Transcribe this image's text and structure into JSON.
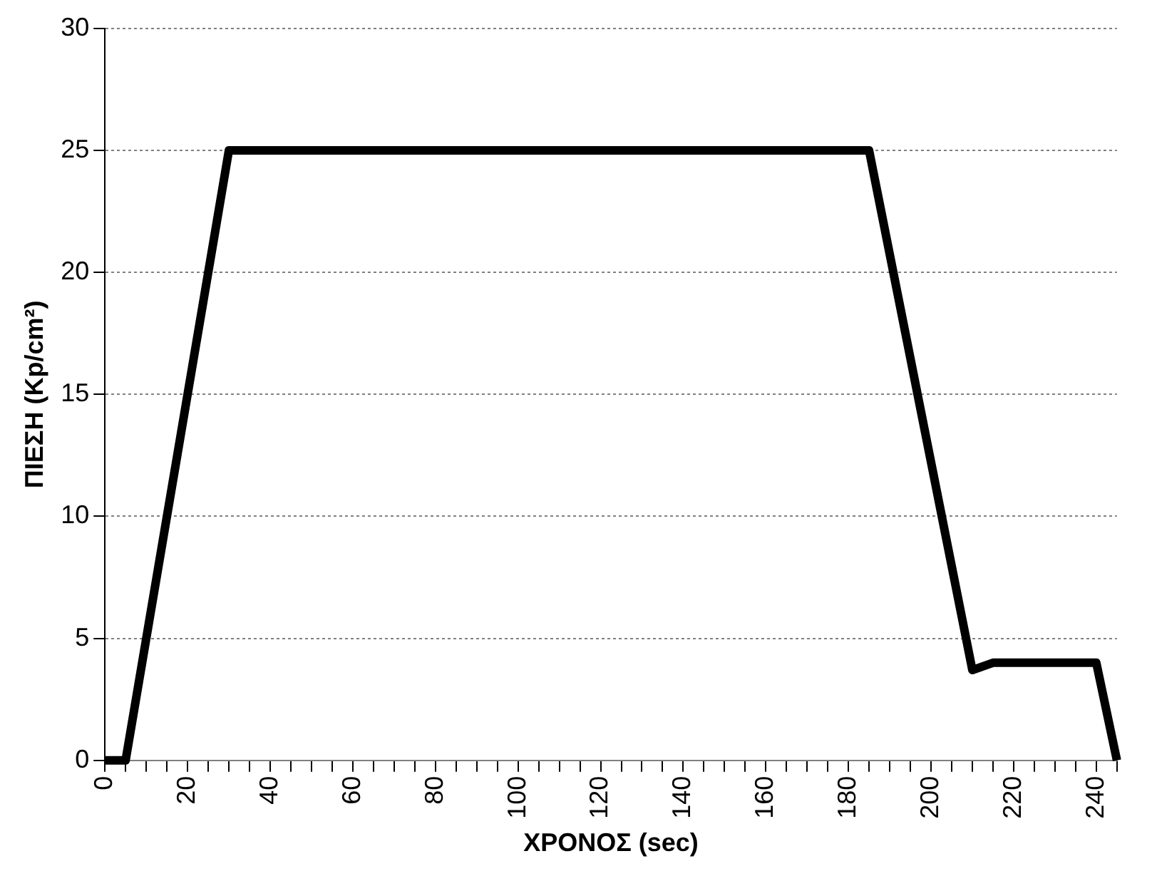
{
  "chart_data": {
    "type": "line",
    "xlabel": "ΧΡΟΝΟΣ (sec)",
    "ylabel": "ΠΙΕΣΗ (Kp/cm²)",
    "x": [
      0,
      5,
      30,
      185,
      210,
      215,
      240,
      245
    ],
    "series": [
      {
        "color": "#000000",
        "values": [
          0,
          0,
          25,
          25,
          3.7,
          4,
          4,
          0
        ]
      }
    ],
    "xlim": [
      0,
      245
    ],
    "xticks": [
      0,
      {
        "value": 5,
        "label": null
      },
      {
        "value": 10,
        "label": null
      },
      {
        "value": 15,
        "label": null
      },
      20,
      {
        "value": 25,
        "label": null
      },
      {
        "value": 30,
        "label": null
      },
      {
        "value": 35,
        "label": null
      },
      40,
      {
        "value": 45,
        "label": null
      },
      {
        "value": 50,
        "label": null
      },
      {
        "value": 55,
        "label": null
      },
      60,
      {
        "value": 65,
        "label": null
      },
      {
        "value": 70,
        "label": null
      },
      {
        "value": 75,
        "label": null
      },
      80,
      {
        "value": 85,
        "label": null
      },
      {
        "value": 90,
        "label": null
      },
      {
        "value": 95,
        "label": null
      },
      100,
      {
        "value": 105,
        "label": null
      },
      {
        "value": 110,
        "label": null
      },
      {
        "value": 115,
        "label": null
      },
      120,
      {
        "value": 125,
        "label": null
      },
      {
        "value": 130,
        "label": null
      },
      {
        "value": 135,
        "label": null
      },
      140,
      {
        "value": 145,
        "label": null
      },
      {
        "value": 150,
        "label": null
      },
      {
        "value": 155,
        "label": null
      },
      160,
      {
        "value": 165,
        "label": null
      },
      {
        "value": 170,
        "label": null
      },
      {
        "value": 175,
        "label": null
      },
      180,
      {
        "value": 185,
        "label": null
      },
      {
        "value": 190,
        "label": null
      },
      {
        "value": 195,
        "label": null
      },
      200,
      {
        "value": 205,
        "label": null
      },
      {
        "value": 210,
        "label": null
      },
      {
        "value": 215,
        "label": null
      },
      220,
      {
        "value": 225,
        "label": null
      },
      {
        "value": 230,
        "label": null
      },
      {
        "value": 235,
        "label": null
      },
      240,
      {
        "value": 245,
        "label": null
      }
    ],
    "ylim": [
      0,
      30
    ],
    "yticks": [
      0,
      5,
      10,
      15,
      20,
      25,
      30
    ],
    "grid": "y",
    "legend": false,
    "marker": "none",
    "line_style": "solid"
  }
}
